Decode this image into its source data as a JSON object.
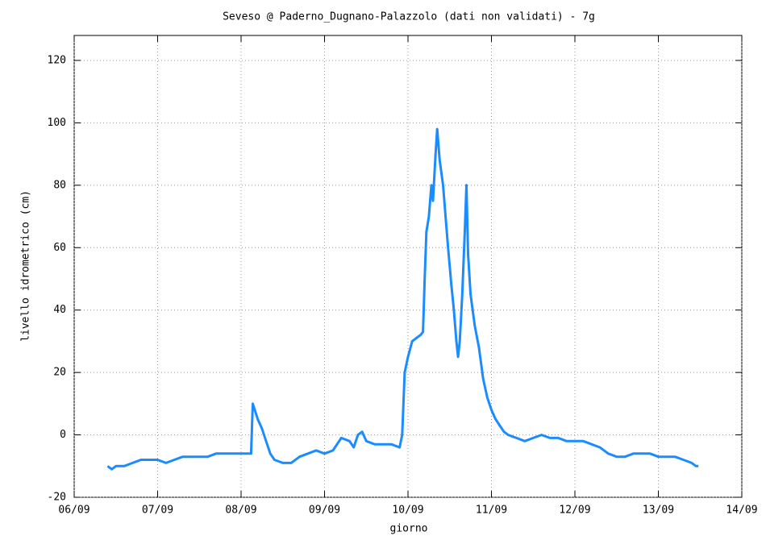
{
  "chart_data": {
    "type": "line",
    "title": "Seveso @ Paderno_Dugnano-Palazzolo (dati non validati) - 7g",
    "x_label": "giorno",
    "y_label": "livello idrometrico (cm)",
    "color": "#1a8cff",
    "grid": true,
    "xlim": [
      0,
      8
    ],
    "xticks": [
      {
        "value": 0,
        "label": "06/09"
      },
      {
        "value": 1,
        "label": "07/09"
      },
      {
        "value": 2,
        "label": "08/09"
      },
      {
        "value": 3,
        "label": "09/09"
      },
      {
        "value": 4,
        "label": "10/09"
      },
      {
        "value": 5,
        "label": "11/09"
      },
      {
        "value": 6,
        "label": "12/09"
      },
      {
        "value": 7,
        "label": "13/09"
      },
      {
        "value": 8,
        "label": "14/09"
      }
    ],
    "ylim": [
      -20,
      128
    ],
    "yticks": [
      -20,
      0,
      20,
      40,
      60,
      80,
      100,
      120
    ],
    "x": [
      0.4,
      0.45,
      0.5,
      0.6,
      0.7,
      0.8,
      0.9,
      1.0,
      1.1,
      1.2,
      1.3,
      1.4,
      1.5,
      1.6,
      1.7,
      1.8,
      1.9,
      2.0,
      2.12,
      2.14,
      2.2,
      2.25,
      2.3,
      2.35,
      2.4,
      2.5,
      2.6,
      2.7,
      2.8,
      2.9,
      3.0,
      3.1,
      3.2,
      3.3,
      3.35,
      3.4,
      3.45,
      3.5,
      3.6,
      3.7,
      3.8,
      3.9,
      3.93,
      3.96,
      4.0,
      4.05,
      4.1,
      4.15,
      4.18,
      4.2,
      4.22,
      4.25,
      4.28,
      4.3,
      4.33,
      4.35,
      4.38,
      4.42,
      4.45,
      4.48,
      4.52,
      4.55,
      4.58,
      4.6,
      4.62,
      4.65,
      4.68,
      4.7,
      4.72,
      4.75,
      4.8,
      4.85,
      4.9,
      4.95,
      5.0,
      5.05,
      5.1,
      5.15,
      5.2,
      5.3,
      5.4,
      5.5,
      5.6,
      5.7,
      5.8,
      5.9,
      6.0,
      6.1,
      6.2,
      6.3,
      6.4,
      6.5,
      6.6,
      6.7,
      6.8,
      6.9,
      7.0,
      7.1,
      7.2,
      7.3,
      7.4,
      7.45,
      7.48
    ],
    "values": [
      -10,
      -11,
      -10,
      -10,
      -9,
      -8,
      -8,
      -8,
      -9,
      -8,
      -7,
      -7,
      -7,
      -7,
      -6,
      -6,
      -6,
      -6,
      -6,
      10,
      5,
      2,
      -2,
      -6,
      -8,
      -9,
      -9,
      -7,
      -6,
      -5,
      -6,
      -5,
      -1,
      -2,
      -4,
      0,
      1,
      -2,
      -3,
      -3,
      -3,
      -4,
      0,
      20,
      25,
      30,
      31,
      32,
      33,
      50,
      65,
      70,
      80,
      75,
      90,
      98,
      88,
      80,
      70,
      60,
      48,
      40,
      30,
      25,
      30,
      45,
      65,
      80,
      58,
      45,
      35,
      28,
      18,
      12,
      8,
      5,
      3,
      1,
      0,
      -1,
      -2,
      -1,
      0,
      -1,
      -1,
      -2,
      -2,
      -2,
      -3,
      -4,
      -6,
      -7,
      -7,
      -6,
      -6,
      -6,
      -7,
      -7,
      -7,
      -8,
      -9,
      -10,
      -10
    ]
  }
}
